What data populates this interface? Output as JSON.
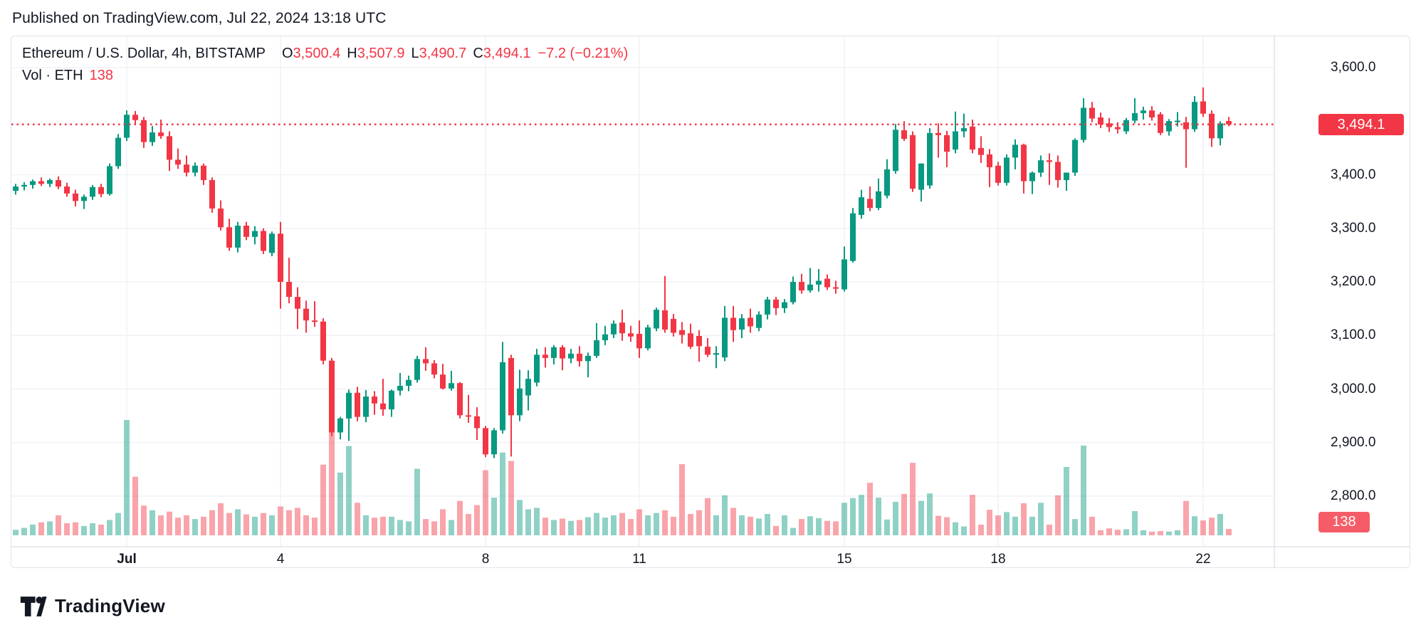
{
  "header": {
    "published": "Published on TradingView.com, Jul 22, 2024 13:18 UTC"
  },
  "legend": {
    "title": "Ethereum / U.S. Dollar, 4h, BITSTAMP",
    "ohlc": [
      {
        "k": "O",
        "v": "3,500.4"
      },
      {
        "k": "H",
        "v": "3,507.9"
      },
      {
        "k": "L",
        "v": "3,490.7"
      },
      {
        "k": "C",
        "v": "3,494.1"
      }
    ],
    "change": "−7.2 (−0.21%)",
    "volume_label": "Vol · ETH",
    "volume_value": "138"
  },
  "price_axis": {
    "ticks": [
      {
        "label": "3,600.0",
        "value": 3600
      },
      {
        "label": "3,400.0",
        "value": 3400
      },
      {
        "label": "3,300.0",
        "value": 3300
      },
      {
        "label": "3,200.0",
        "value": 3200
      },
      {
        "label": "3,100.0",
        "value": 3100
      },
      {
        "label": "3,000.0",
        "value": 3000
      },
      {
        "label": "2,900.0",
        "value": 2900
      },
      {
        "label": "2,800.0",
        "value": 2800
      }
    ],
    "last_price_label": "3,494.1",
    "volume_badge": "138"
  },
  "footer": {
    "brand": "TradingView"
  },
  "colors": {
    "up": "#089981",
    "down": "#F23645",
    "vol_up": "rgba(8,153,129,0.45)",
    "vol_down": "rgba(242,54,69,0.45)",
    "last_price_line": "#F23645",
    "grid": "#f0f2f6",
    "border": "#e0e3eb",
    "text": "#131722"
  },
  "chart_data": {
    "type": "candlestick+volume",
    "title": "Ethereum / U.S. Dollar, 4h, BITSTAMP",
    "last_price": 3494.1,
    "last_volume": 138,
    "ylim": [
      2760,
      3660
    ],
    "y_ticks": [
      3600,
      3400,
      3300,
      3200,
      3100,
      3000,
      2900,
      2800
    ],
    "x_ticks": [
      {
        "label": "Jul",
        "day_offset": 0,
        "bold": true
      },
      {
        "label": "4",
        "day_offset": 3,
        "bold": false
      },
      {
        "label": "8",
        "day_offset": 7,
        "bold": false
      },
      {
        "label": "11",
        "day_offset": 10,
        "bold": false
      },
      {
        "label": "15",
        "day_offset": 14,
        "bold": false
      },
      {
        "label": "18",
        "day_offset": 17,
        "bold": false
      },
      {
        "label": "22",
        "day_offset": 21,
        "bold": false
      }
    ],
    "candles": [
      [
        3370,
        3383,
        3363,
        3378,
        120
      ],
      [
        3378,
        3386,
        3371,
        3381,
        160
      ],
      [
        3381,
        3391,
        3374,
        3388,
        230
      ],
      [
        3388,
        3395,
        3379,
        3383,
        280
      ],
      [
        3383,
        3393,
        3377,
        3390,
        300
      ],
      [
        3390,
        3397,
        3373,
        3378,
        430
      ],
      [
        3378,
        3385,
        3359,
        3365,
        260
      ],
      [
        3365,
        3372,
        3341,
        3351,
        280
      ],
      [
        3351,
        3363,
        3336,
        3359,
        200
      ],
      [
        3359,
        3381,
        3353,
        3377,
        260
      ],
      [
        3377,
        3383,
        3358,
        3364,
        230
      ],
      [
        3364,
        3421,
        3361,
        3416,
        330
      ],
      [
        3416,
        3476,
        3411,
        3469,
        480
      ],
      [
        3469,
        3520,
        3463,
        3512,
        2480
      ],
      [
        3512,
        3519,
        3494,
        3502,
        1260
      ],
      [
        3502,
        3508,
        3450,
        3461,
        640
      ],
      [
        3461,
        3491,
        3454,
        3479,
        540
      ],
      [
        3479,
        3503,
        3467,
        3472,
        430
      ],
      [
        3472,
        3481,
        3407,
        3428,
        510
      ],
      [
        3428,
        3449,
        3411,
        3419,
        380
      ],
      [
        3419,
        3436,
        3397,
        3404,
        430
      ],
      [
        3404,
        3423,
        3397,
        3417,
        350
      ],
      [
        3417,
        3421,
        3381,
        3390,
        400
      ],
      [
        3390,
        3395,
        3329,
        3337,
        540
      ],
      [
        3337,
        3352,
        3296,
        3302,
        690
      ],
      [
        3302,
        3318,
        3258,
        3264,
        480
      ],
      [
        3264,
        3312,
        3255,
        3305,
        560
      ],
      [
        3305,
        3312,
        3278,
        3284,
        450
      ],
      [
        3284,
        3304,
        3270,
        3295,
        400
      ],
      [
        3295,
        3300,
        3252,
        3258,
        480
      ],
      [
        3254,
        3294,
        3248,
        3290,
        430
      ],
      [
        3290,
        3312,
        3150,
        3200,
        620
      ],
      [
        3200,
        3245,
        3160,
        3172,
        540
      ],
      [
        3172,
        3190,
        3112,
        3150,
        590
      ],
      [
        3150,
        3165,
        3105,
        3128,
        430
      ],
      [
        3128,
        3164,
        3116,
        3126,
        380
      ],
      [
        3126,
        3132,
        3046,
        3053,
        1520
      ],
      [
        3053,
        3058,
        2912,
        2919,
        2450
      ],
      [
        2919,
        2948,
        2906,
        2945,
        1350
      ],
      [
        2945,
        2999,
        2903,
        2993,
        1920
      ],
      [
        2993,
        3004,
        2940,
        2948,
        700
      ],
      [
        2948,
        2998,
        2938,
        2986,
        430
      ],
      [
        2986,
        2996,
        2952,
        2973,
        380
      ],
      [
        2973,
        3019,
        2950,
        2962,
        400
      ],
      [
        2962,
        2999,
        2948,
        2997,
        400
      ],
      [
        2997,
        3030,
        2988,
        3006,
        330
      ],
      [
        3006,
        3025,
        2996,
        3017,
        300
      ],
      [
        3017,
        3062,
        3012,
        3056,
        1430
      ],
      [
        3056,
        3078,
        3034,
        3048,
        350
      ],
      [
        3048,
        3054,
        3020,
        3027,
        300
      ],
      [
        3027,
        3047,
        2999,
        3001,
        560
      ],
      [
        3001,
        3034,
        2997,
        3011,
        330
      ],
      [
        3011,
        3013,
        2945,
        2951,
        740
      ],
      [
        2951,
        2989,
        2937,
        2949,
        460
      ],
      [
        2949,
        2966,
        2905,
        2927,
        650
      ],
      [
        2927,
        2931,
        2873,
        2878,
        1400
      ],
      [
        2878,
        2927,
        2871,
        2923,
        810
      ],
      [
        2923,
        3088,
        2917,
        3050,
        1780
      ],
      [
        3058,
        3064,
        2874,
        2951,
        1600
      ],
      [
        2951,
        3036,
        2940,
        3001,
        760
      ],
      [
        2988,
        3035,
        2960,
        3019,
        560
      ],
      [
        3012,
        3075,
        3005,
        3064,
        590
      ],
      [
        3064,
        3078,
        3040,
        3058,
        380
      ],
      [
        3058,
        3082,
        3046,
        3078,
        330
      ],
      [
        3078,
        3082,
        3035,
        3057,
        360
      ],
      [
        3057,
        3075,
        3048,
        3066,
        310
      ],
      [
        3066,
        3080,
        3042,
        3052,
        330
      ],
      [
        3052,
        3068,
        3022,
        3062,
        390
      ],
      [
        3062,
        3123,
        3058,
        3091,
        480
      ],
      [
        3091,
        3118,
        3082,
        3102,
        380
      ],
      [
        3102,
        3128,
        3095,
        3122,
        430
      ],
      [
        3124,
        3148,
        3090,
        3104,
        480
      ],
      [
        3104,
        3118,
        3088,
        3098,
        350
      ],
      [
        3103,
        3128,
        3058,
        3076,
        560
      ],
      [
        3076,
        3120,
        3072,
        3115,
        430
      ],
      [
        3113,
        3152,
        3108,
        3148,
        480
      ],
      [
        3147,
        3211,
        3105,
        3111,
        540
      ],
      [
        3131,
        3140,
        3098,
        3105,
        400
      ],
      [
        3110,
        3125,
        3085,
        3101,
        1530
      ],
      [
        3104,
        3122,
        3075,
        3079,
        460
      ],
      [
        3099,
        3110,
        3051,
        3080,
        540
      ],
      [
        3079,
        3095,
        3060,
        3064,
        800
      ],
      [
        3064,
        3080,
        3039,
        3067,
        430
      ],
      [
        3059,
        3155,
        3052,
        3133,
        860
      ],
      [
        3133,
        3155,
        3088,
        3110,
        590
      ],
      [
        3111,
        3140,
        3095,
        3132,
        430
      ],
      [
        3133,
        3150,
        3105,
        3117,
        400
      ],
      [
        3114,
        3145,
        3108,
        3139,
        360
      ],
      [
        3139,
        3172,
        3130,
        3167,
        460
      ],
      [
        3167,
        3172,
        3138,
        3151,
        200
      ],
      [
        3151,
        3168,
        3142,
        3162,
        430
      ],
      [
        3162,
        3210,
        3158,
        3200,
        160
      ],
      [
        3200,
        3215,
        3178,
        3184,
        350
      ],
      [
        3184,
        3226,
        3180,
        3195,
        410
      ],
      [
        3195,
        3224,
        3182,
        3202,
        370
      ],
      [
        3206,
        3214,
        3185,
        3190,
        310
      ],
      [
        3190,
        3202,
        3178,
        3188,
        300
      ],
      [
        3186,
        3266,
        3182,
        3242,
        700
      ],
      [
        3239,
        3338,
        3236,
        3328,
        800
      ],
      [
        3325,
        3372,
        3318,
        3358,
        870
      ],
      [
        3355,
        3378,
        3332,
        3338,
        1130
      ],
      [
        3338,
        3393,
        3334,
        3369,
        810
      ],
      [
        3361,
        3429,
        3356,
        3410,
        340
      ],
      [
        3407,
        3495,
        3402,
        3484,
        720
      ],
      [
        3483,
        3500,
        3463,
        3467,
        890
      ],
      [
        3474,
        3481,
        3368,
        3374,
        1560
      ],
      [
        3372,
        3421,
        3350,
        3421,
        740
      ],
      [
        3380,
        3487,
        3374,
        3478,
        900
      ],
      [
        3478,
        3496,
        3432,
        3474,
        420
      ],
      [
        3474,
        3482,
        3414,
        3443,
        390
      ],
      [
        3447,
        3518,
        3440,
        3481,
        280
      ],
      [
        3481,
        3514,
        3470,
        3487,
        190
      ],
      [
        3490,
        3503,
        3440,
        3447,
        870
      ],
      [
        3450,
        3472,
        3422,
        3437,
        230
      ],
      [
        3438,
        3448,
        3377,
        3414,
        550
      ],
      [
        3417,
        3424,
        3380,
        3385,
        430
      ],
      [
        3385,
        3438,
        3380,
        3432,
        500
      ],
      [
        3432,
        3466,
        3410,
        3456,
        400
      ],
      [
        3456,
        3458,
        3365,
        3388,
        690
      ],
      [
        3388,
        3406,
        3364,
        3404,
        400
      ],
      [
        3404,
        3436,
        3396,
        3427,
        700
      ],
      [
        3427,
        3440,
        3381,
        3424,
        230
      ],
      [
        3424,
        3436,
        3376,
        3390,
        860
      ],
      [
        3390,
        3402,
        3370,
        3404,
        1470
      ],
      [
        3404,
        3468,
        3398,
        3465,
        350
      ],
      [
        3465,
        3543,
        3460,
        3525,
        1930
      ],
      [
        3525,
        3536,
        3498,
        3505,
        400
      ],
      [
        3507,
        3516,
        3487,
        3494,
        110
      ],
      [
        3496,
        3506,
        3480,
        3489,
        150
      ],
      [
        3489,
        3498,
        3477,
        3485,
        120
      ],
      [
        3481,
        3506,
        3476,
        3502,
        130
      ],
      [
        3501,
        3543,
        3496,
        3515,
        520
      ],
      [
        3515,
        3527,
        3503,
        3520,
        110
      ],
      [
        3520,
        3528,
        3501,
        3507,
        80
      ],
      [
        3513,
        3517,
        3474,
        3478,
        90
      ],
      [
        3481,
        3504,
        3473,
        3500,
        80
      ],
      [
        3500,
        3517,
        3490,
        3501,
        110
      ],
      [
        3498,
        3508,
        3413,
        3485,
        740
      ],
      [
        3485,
        3547,
        3480,
        3536,
        410
      ],
      [
        3537,
        3563,
        3508,
        3514,
        320
      ],
      [
        3514,
        3520,
        3452,
        3468,
        380
      ],
      [
        3468,
        3500,
        3455,
        3496,
        460
      ],
      [
        3500.4,
        3507.9,
        3490.7,
        3494.1,
        138
      ]
    ]
  }
}
